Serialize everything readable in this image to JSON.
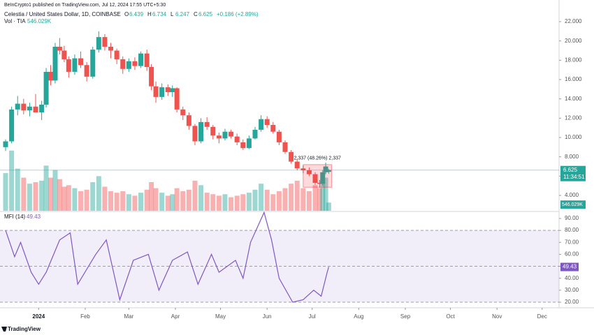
{
  "header": {
    "text": "BeInCrypto1 published on TradingView.com, Jul 12, 2024 17:55 UTC+5:30"
  },
  "footer": {
    "text": "TradingView"
  },
  "legend": {
    "symbol": "Celestia / United States Dollar, 1D, COINBASE",
    "items": [
      {
        "label": "O",
        "value": "6.439"
      },
      {
        "label": "H",
        "value": "6.734"
      },
      {
        "label": "L",
        "value": "6.247"
      },
      {
        "label": "C",
        "value": "6.625"
      }
    ],
    "change": "+0.186 (+2.89%)",
    "volume_label": "Vol · TIA",
    "volume_value": "546.029K"
  },
  "price_tags": {
    "countdown": "11:34:51",
    "volume": "546.029K"
  },
  "measure": {
    "label": "2.337 (48.26%) 2,337",
    "x": [
      176,
      195
    ],
    "y": [
      4.85,
      7.19
    ],
    "color": "#f23645"
  },
  "chart_data": [
    {
      "type": "candlestick",
      "x": [
        -22,
        -18,
        -14,
        -10,
        -6,
        -2,
        2,
        5,
        8,
        11,
        14,
        17,
        20,
        24,
        28,
        32,
        36,
        40,
        44,
        48,
        52,
        56,
        60,
        64,
        68,
        72,
        75,
        78,
        82,
        86,
        89,
        92,
        96,
        100,
        104,
        108,
        112,
        116,
        120,
        124,
        128,
        132,
        136,
        140,
        144,
        148,
        152,
        156,
        160,
        164,
        168,
        172,
        176,
        180,
        184,
        187,
        189,
        191,
        193
      ],
      "open": [
        9.0,
        9.6,
        12.9,
        13.5,
        12.8,
        13.2,
        12.6,
        13.4,
        16.8,
        15.9,
        19.4,
        19.0,
        18.1,
        16.8,
        18.2,
        17.5,
        16.3,
        19.1,
        20.4,
        19.4,
        19.0,
        18.1,
        17.1,
        17.9,
        17.4,
        18.7,
        17.3,
        15.3,
        14.2,
        15.2,
        14.7,
        15.1,
        12.9,
        12.3,
        11.2,
        9.6,
        11.6,
        11.1,
        10.2,
        9.9,
        10.6,
        10.1,
        9.5,
        8.9,
        9.9,
        10.8,
        11.9,
        11.3,
        10.6,
        9.5,
        8.5,
        7.5,
        6.8,
        6.6,
        6.2,
        5.3,
        5.2,
        6.4,
        6.439
      ],
      "high": [
        9.8,
        13.2,
        14.3,
        14.0,
        13.6,
        14.5,
        13.8,
        17.2,
        17.5,
        19.8,
        20.3,
        19.5,
        18.4,
        18.6,
        18.9,
        17.8,
        19.4,
        21.0,
        20.7,
        19.8,
        19.2,
        18.4,
        18.2,
        18.3,
        18.9,
        19.1,
        17.6,
        15.8,
        15.6,
        15.5,
        15.4,
        15.2,
        13.2,
        12.6,
        11.4,
        12.0,
        12.1,
        11.3,
        10.5,
        10.9,
        10.8,
        10.4,
        9.8,
        10.2,
        11.1,
        12.3,
        12.2,
        11.6,
        10.8,
        9.7,
        8.7,
        7.8,
        7.1,
        6.9,
        6.4,
        5.6,
        6.6,
        7.4,
        6.734
      ],
      "low": [
        8.6,
        9.4,
        12.3,
        12.4,
        12.2,
        12.6,
        11.8,
        13.1,
        15.4,
        15.6,
        18.6,
        17.8,
        16.2,
        16.5,
        17.2,
        15.8,
        16.1,
        18.8,
        19.0,
        18.2,
        17.6,
        16.6,
        16.8,
        17.0,
        17.2,
        16.9,
        14.9,
        13.6,
        13.9,
        14.3,
        14.2,
        12.6,
        11.8,
        10.8,
        9.2,
        9.4,
        10.8,
        9.8,
        9.4,
        9.7,
        9.9,
        9.2,
        8.7,
        8.8,
        9.8,
        10.6,
        11.0,
        10.4,
        9.2,
        8.3,
        7.3,
        6.6,
        6.3,
        6.0,
        5.1,
        4.8,
        5.0,
        6.2,
        6.247
      ],
      "close": [
        9.6,
        12.9,
        13.5,
        12.8,
        13.2,
        12.6,
        13.4,
        16.8,
        15.9,
        19.4,
        19.0,
        18.1,
        16.8,
        18.2,
        17.5,
        16.3,
        19.1,
        20.4,
        19.4,
        19.0,
        18.1,
        17.1,
        17.9,
        17.4,
        18.7,
        17.3,
        15.3,
        14.2,
        15.2,
        14.7,
        15.1,
        12.9,
        12.3,
        11.2,
        9.6,
        11.6,
        11.1,
        10.2,
        9.9,
        10.6,
        10.1,
        9.5,
        8.9,
        9.9,
        10.8,
        11.9,
        11.3,
        10.6,
        9.5,
        8.5,
        7.5,
        6.8,
        6.6,
        6.2,
        5.3,
        5.2,
        6.4,
        7.0,
        6.625
      ],
      "volume": [
        2500,
        4000,
        2800,
        2200,
        1800,
        1900,
        2000,
        3000,
        2200,
        2700,
        2100,
        1600,
        1700,
        1500,
        1300,
        1400,
        1900,
        2300,
        1600,
        1300,
        1200,
        1300,
        1100,
        1000,
        1200,
        1400,
        1900,
        1500,
        1200,
        1000,
        1100,
        1500,
        1300,
        1400,
        2000,
        1700,
        1200,
        1100,
        1000,
        1100,
        900,
        1000,
        1100,
        1200,
        1400,
        1800,
        1400,
        1100,
        1300,
        1500,
        1800,
        2000,
        1500,
        1300,
        1700,
        1500,
        1900,
        2200,
        546.029
      ],
      "up_color": "#26a69a",
      "down_color": "#ef5350",
      "xlim": [
        -22,
        350
      ],
      "ylim": [
        2.41,
        24.24
      ],
      "volume_ylim": [
        0,
        14000
      ],
      "yticks": [
        {
          "value": 4,
          "label": "4.000"
        },
        {
          "value": 6,
          "label": "6.000"
        },
        {
          "value": 8,
          "label": "8.000"
        },
        {
          "value": 10,
          "label": "10.000"
        },
        {
          "value": 12,
          "label": "12.000"
        },
        {
          "value": 14,
          "label": "14.000"
        },
        {
          "value": 16,
          "label": "16.000"
        },
        {
          "value": 18,
          "label": "18.000"
        },
        {
          "value": 20,
          "label": "20.000"
        },
        {
          "value": 22,
          "label": "22.000"
        }
      ],
      "xticks": [
        {
          "value": 0,
          "label": "2024"
        },
        {
          "value": 31,
          "label": "Feb"
        },
        {
          "value": 60,
          "label": "Mar"
        },
        {
          "value": 91,
          "label": "Apr"
        },
        {
          "value": 121,
          "label": "May"
        },
        {
          "value": 152,
          "label": "Jun"
        },
        {
          "value": 182,
          "label": "Jul"
        },
        {
          "value": 213,
          "label": "Aug"
        },
        {
          "value": 244,
          "label": "Sep"
        },
        {
          "value": 274,
          "label": "Oct"
        },
        {
          "value": 305,
          "label": "Nov"
        },
        {
          "value": 335,
          "label": "Dec"
        }
      ]
    },
    {
      "type": "line",
      "title": "MFI (14)",
      "last_label": "49.43",
      "x": [
        -22,
        -16,
        -12,
        -5,
        0,
        5,
        14,
        21,
        26,
        38,
        45,
        54,
        63,
        73,
        80,
        89,
        99,
        106,
        115,
        120,
        131,
        136,
        141,
        150,
        155,
        160,
        169,
        176,
        183,
        188,
        192,
        193
      ],
      "values": [
        80,
        58,
        70,
        45,
        35,
        45,
        72,
        78,
        35,
        60,
        72,
        22,
        55,
        60,
        30,
        55,
        62,
        35,
        60,
        45,
        55,
        40,
        70,
        95,
        72,
        40,
        20,
        22,
        30,
        25,
        45,
        49.43
      ],
      "color": "#7e57c2",
      "band_fill": "#7e57c2",
      "bands": [
        20,
        80
      ],
      "midline": 50,
      "xlim": [
        -22,
        350
      ],
      "ylim": [
        15.9,
        95.25
      ],
      "yticks": [
        {
          "value": 20,
          "label": "20.00"
        },
        {
          "value": 30,
          "label": "30.00"
        },
        {
          "value": 40,
          "label": "40.00"
        },
        {
          "value": 50,
          "label": "50.00"
        },
        {
          "value": 60,
          "label": "60.00"
        },
        {
          "value": 70,
          "label": "70.00"
        },
        {
          "value": 80,
          "label": "80.00"
        },
        {
          "value": 90,
          "label": "90.00"
        }
      ]
    }
  ]
}
